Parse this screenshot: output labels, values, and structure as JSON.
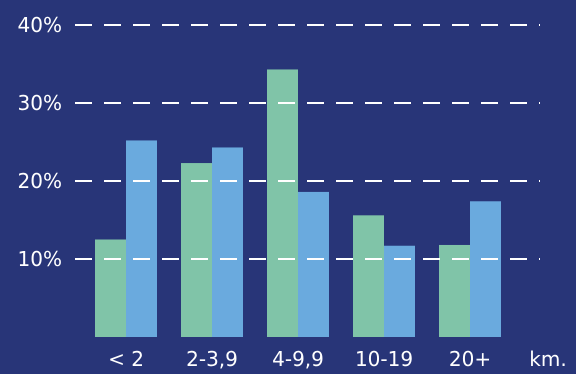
{
  "chart_data": {
    "type": "bar",
    "categories": [
      "< 2",
      "2-3,9",
      "4-9,9",
      "10-19",
      "20+"
    ],
    "unit_label": "km.",
    "series": [
      {
        "values": [
          12.5,
          22.3,
          34.3,
          15.6,
          11.8
        ],
        "color": "#80c4a8"
      },
      {
        "values": [
          25.2,
          24.3,
          18.6,
          11.7,
          17.4
        ],
        "color": "#6aaade"
      }
    ],
    "y_ticks": [
      "10%",
      "20%",
      "30%",
      "40%"
    ],
    "y_tick_values": [
      10,
      20,
      30,
      40
    ],
    "ylim": [
      0,
      40
    ],
    "grid": "dashed",
    "gridline_color": "#ffffff",
    "background": "#283578"
  }
}
